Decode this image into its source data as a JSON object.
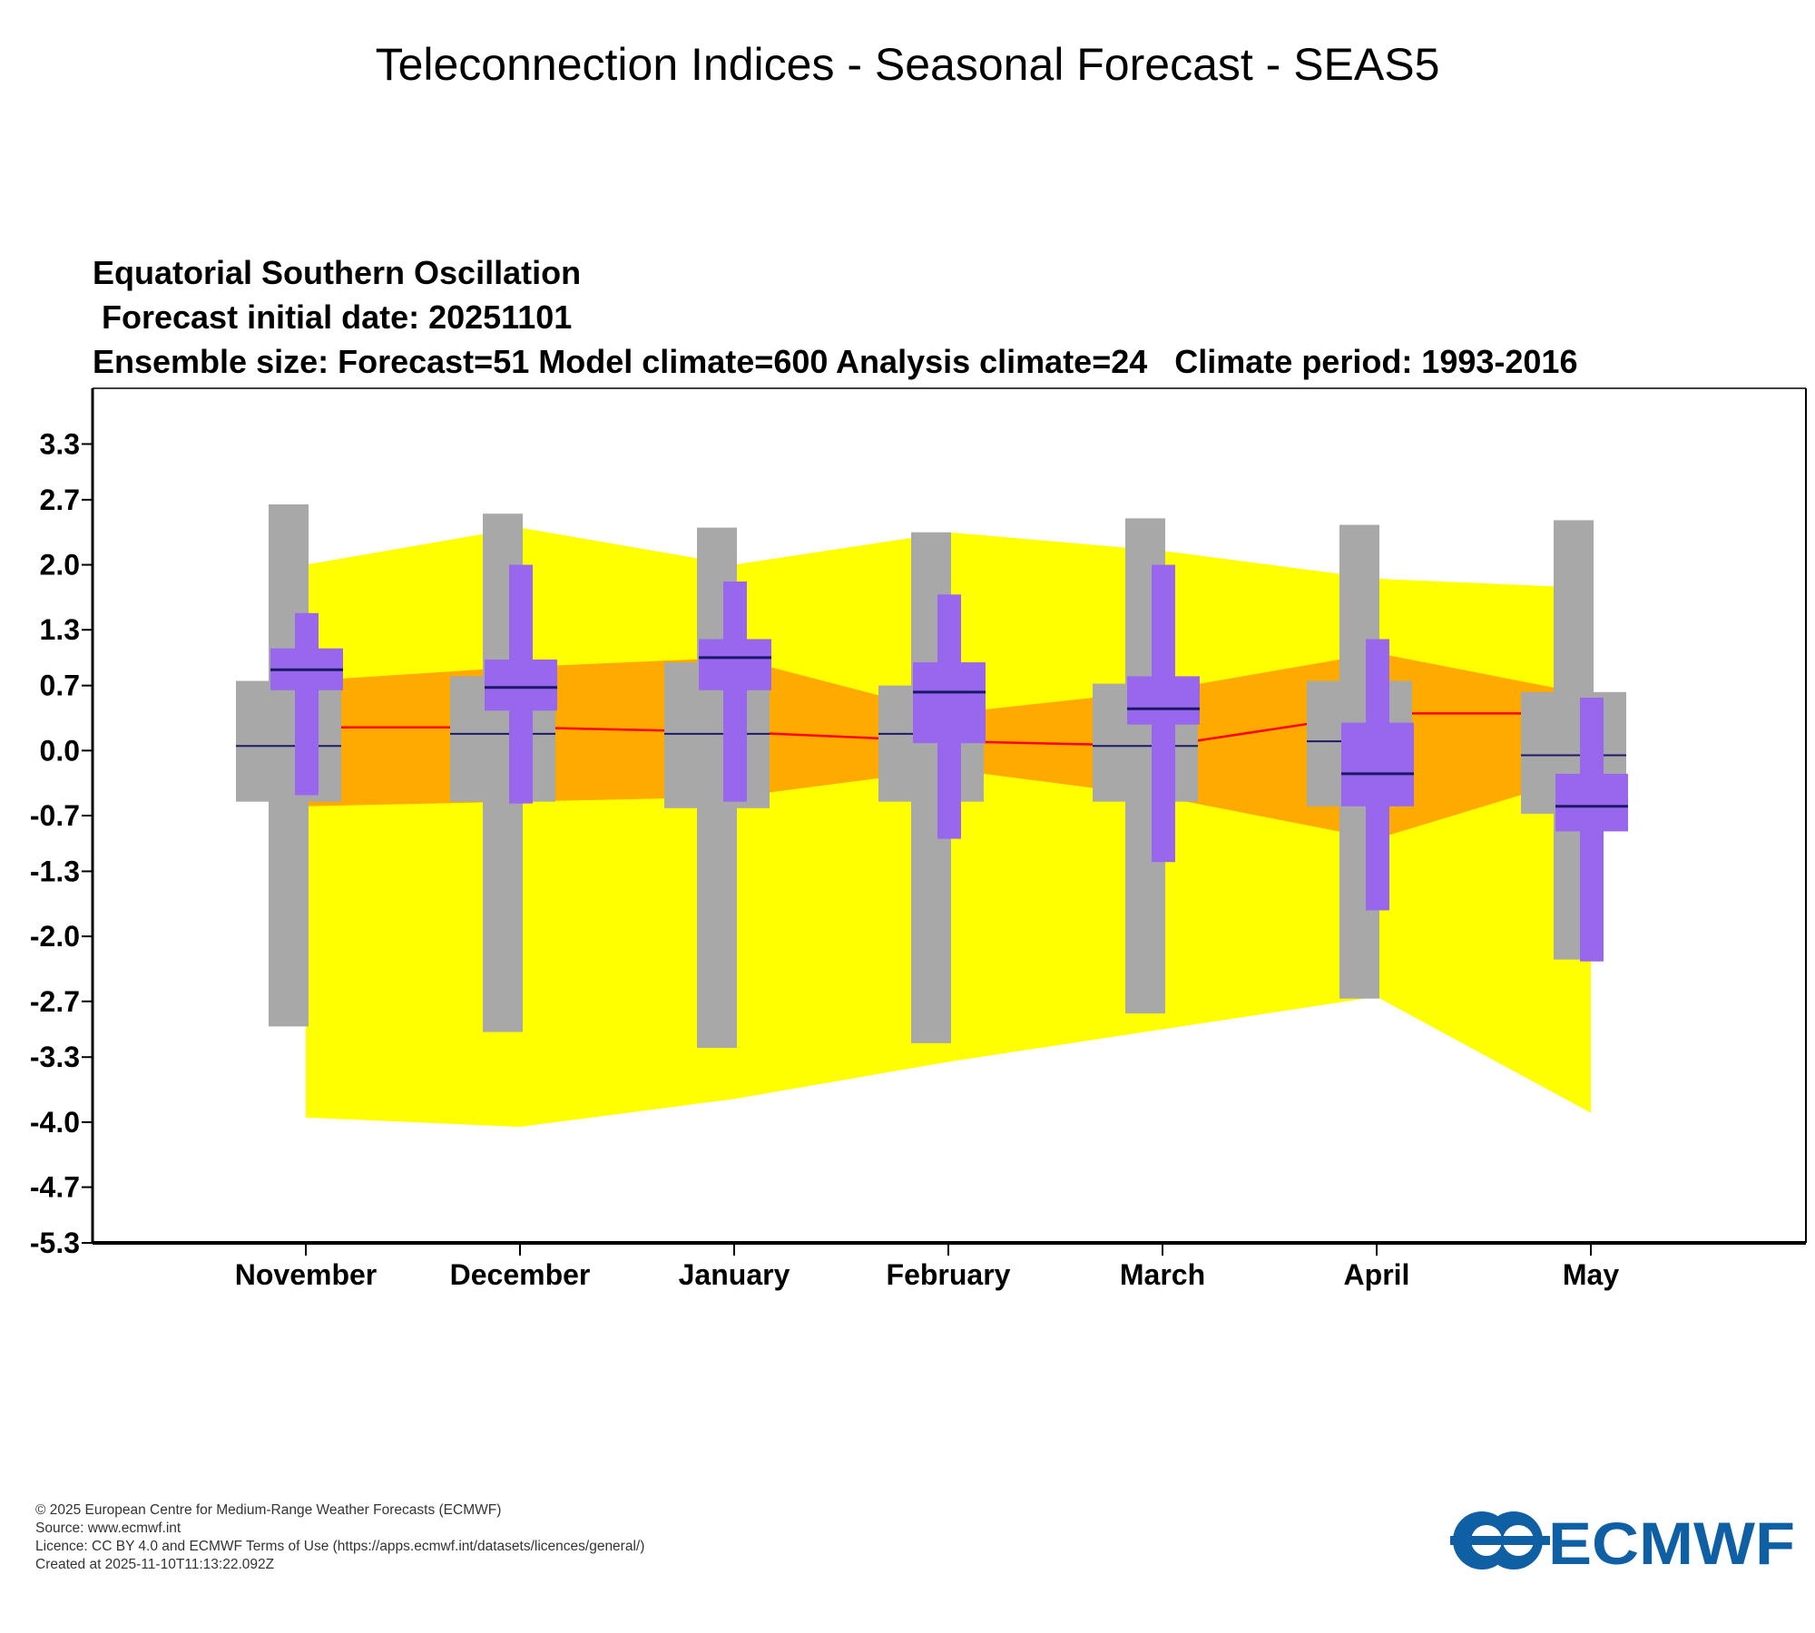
{
  "page": {
    "title": "Teleconnection Indices - Seasonal Forecast - SEAS5",
    "footer": [
      "© 2025 European Centre for Medium-Range Weather Forecasts (ECMWF)",
      "Source: www.ecmwf.int",
      "Licence: CC BY 4.0 and ECMWF Terms of Use (https://apps.ecmwf.int/datasets/licences/general/)",
      "Created at 2025-11-10T11:13:22.092Z"
    ],
    "logo_text": "ECMWF"
  },
  "chart_data": {
    "type": "box-plume",
    "title_lines": [
      "Equatorial Southern Oscillation",
      " Forecast initial date: 20251101",
      "Ensemble size: Forecast=51 Model climate=600 Analysis climate=24   Climate period: 1993-2016"
    ],
    "categories": [
      "November",
      "December",
      "January",
      "February",
      "March",
      "April",
      "May"
    ],
    "y_ticks": [
      "3.3",
      "2.7",
      "2.0",
      "1.3",
      "0.7",
      "0.0",
      "-0.7",
      "-1.3",
      "-2.0",
      "-2.7",
      "-3.3",
      "-4.0",
      "-4.7",
      "-5.3"
    ],
    "ylim": [
      -5.3,
      3.9
    ],
    "climate_outer_band": {
      "upper": [
        2.0,
        2.4,
        2.0,
        2.35,
        2.15,
        1.85,
        1.75
      ],
      "lower": [
        -3.95,
        -4.05,
        -3.75,
        -3.35,
        -3.0,
        -2.65,
        -3.9
      ]
    },
    "climate_inner_band": {
      "upper": [
        0.75,
        0.9,
        1.0,
        0.4,
        0.65,
        1.05,
        0.6
      ],
      "lower": [
        -0.6,
        -0.55,
        -0.5,
        -0.2,
        -0.5,
        -0.95,
        -0.25
      ]
    },
    "climate_median_line": [
      0.25,
      0.25,
      0.2,
      0.1,
      0.05,
      0.4,
      0.4
    ],
    "model_climate": {
      "max": [
        2.65,
        2.55,
        2.4,
        2.35,
        2.5,
        2.43,
        2.48
      ],
      "q75": [
        0.75,
        0.8,
        0.95,
        0.7,
        0.72,
        0.75,
        0.63
      ],
      "median": [
        0.05,
        0.18,
        0.18,
        0.18,
        0.05,
        0.1,
        -0.05
      ],
      "q25": [
        -0.55,
        -0.55,
        -0.62,
        -0.55,
        -0.55,
        -0.6,
        -0.68
      ],
      "min": [
        -2.97,
        -3.03,
        -3.2,
        -3.15,
        -2.83,
        -2.67,
        -2.25
      ]
    },
    "forecast": {
      "max": [
        1.48,
        2.0,
        1.82,
        1.68,
        2.0,
        1.2,
        0.57
      ],
      "q75": [
        1.1,
        0.98,
        1.2,
        0.95,
        0.8,
        0.3,
        -0.25
      ],
      "median": [
        0.87,
        0.68,
        1.0,
        0.63,
        0.45,
        -0.25,
        -0.6
      ],
      "q25": [
        0.65,
        0.43,
        0.65,
        0.08,
        0.28,
        -0.6,
        -0.87
      ],
      "min": [
        -0.48,
        -0.57,
        -0.55,
        -0.95,
        -1.2,
        -1.72,
        -2.27
      ]
    },
    "colors": {
      "outer_band": "#ffff00",
      "inner_band": "#ffaa00",
      "median_line": "#ff0000",
      "model_box": "#a8a8a8",
      "forecast_box": "#9966ee",
      "median_marker": "#1a1a66",
      "axis": "#000000",
      "logo": "#0e5fa4"
    }
  }
}
